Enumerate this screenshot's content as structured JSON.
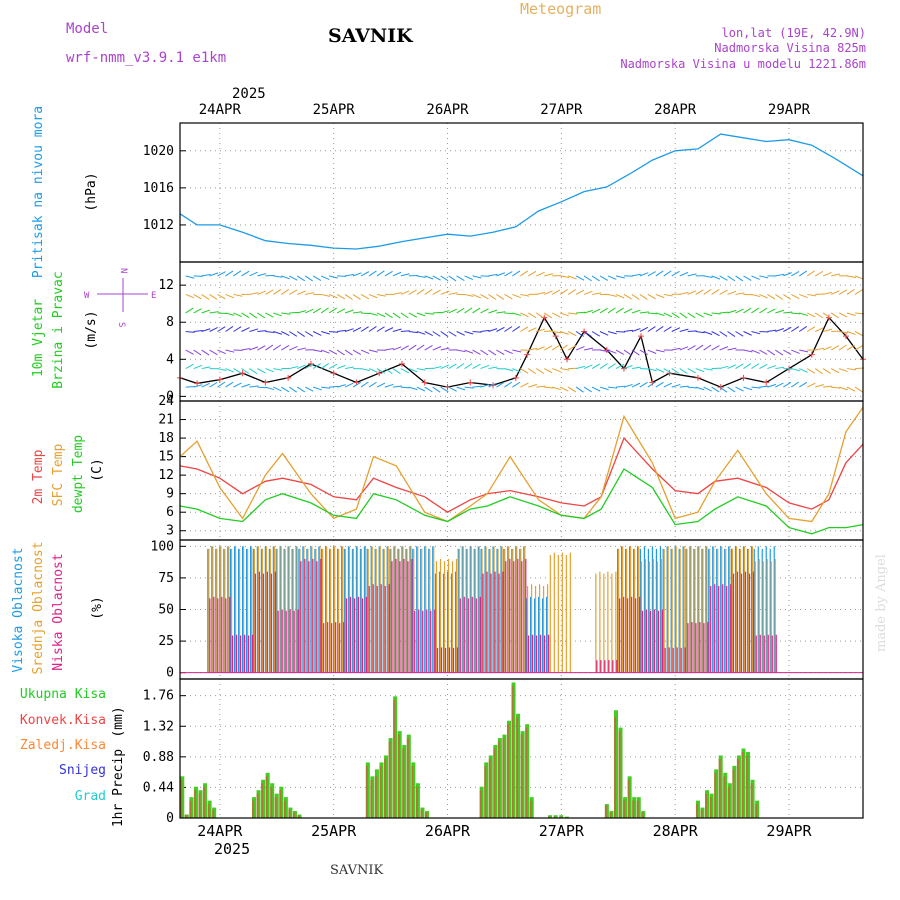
{
  "header": {
    "model_label": "Model",
    "model_name": "wrf-nmm_v3.9.1 e1km",
    "station": "SAVNIK",
    "product": "Meteogram",
    "lonlat": "lon,lat (19E, 42.9N)",
    "altitude": "Nadmorska Visina 825m",
    "model_altitude": "Nadmorska Visina u modelu 1221.86m"
  },
  "footer": {
    "station": "SAVNIK",
    "credit": "made by Angel"
  },
  "colors": {
    "pressure": "#1e9be6",
    "temp2m": "#ee4444",
    "sfc_temp": "#e6a030",
    "dewpoint": "#22cc22",
    "high_cloud": "#1e9be6",
    "mid_cloud": "#e6a030",
    "low_cloud": "#dd2288",
    "total_rain": "#44cc22",
    "conv_rain": "#ee4444",
    "grid_rain": "#ff8833",
    "snow": "#3333dd",
    "graupel": "#22cccc",
    "title_purple": "#aa44cc",
    "meteogram_orange": "#e6b060"
  },
  "chart_data": [
    {
      "type": "line",
      "panel": "pressure",
      "ylabel": "Pritisak na nivou mora",
      "unit": "(hPa)",
      "ylim": [
        1008,
        1023
      ],
      "yticks": [
        1012,
        1016,
        1020
      ],
      "x_top_labels": [
        "24APR",
        "25APR",
        "26APR",
        "27APR",
        "28APR",
        "29APR"
      ],
      "x_top_year": "2025",
      "x_range_days": [
        23.65,
        29.65
      ],
      "series": [
        {
          "x": [
            23.65,
            23.8,
            24.0,
            24.2,
            24.4,
            24.6,
            24.8,
            25.0,
            25.2,
            25.4,
            25.6,
            25.8,
            26.0,
            26.2,
            26.4,
            26.6,
            26.8,
            27.0,
            27.2,
            27.4,
            27.6,
            27.8,
            28.0,
            28.2,
            28.4,
            28.6,
            28.8,
            29.0,
            29.2,
            29.4,
            29.65
          ],
          "y": [
            1013.2,
            1012.0,
            1012.0,
            1011.2,
            1010.3,
            1010.0,
            1009.8,
            1009.5,
            1009.4,
            1009.7,
            1010.2,
            1010.6,
            1011.0,
            1010.8,
            1011.2,
            1011.8,
            1013.5,
            1014.5,
            1015.6,
            1016.1,
            1017.5,
            1019.0,
            1020.0,
            1020.2,
            1021.8,
            1021.4,
            1021.0,
            1021.2,
            1020.6,
            1019.2,
            1017.3
          ]
        }
      ]
    },
    {
      "type": "line",
      "panel": "wind",
      "ylabel": "10m Vjetar",
      "ylabel2": "Brzina i Pravac",
      "unit": "(m/s)",
      "compass": {
        "n": "N",
        "s": "S",
        "w": "W",
        "e": "E"
      },
      "ylim": [
        -0.5,
        14.5
      ],
      "yticks": [
        0,
        4,
        8,
        12
      ],
      "series": [
        {
          "name": "speed",
          "x": [
            23.65,
            23.8,
            24.0,
            24.2,
            24.4,
            24.6,
            24.8,
            25.0,
            25.2,
            25.4,
            25.6,
            25.8,
            26.0,
            26.2,
            26.4,
            26.6,
            26.7,
            26.85,
            26.95,
            27.05,
            27.2,
            27.4,
            27.55,
            27.7,
            27.8,
            27.95,
            28.2,
            28.4,
            28.6,
            28.8,
            29.0,
            29.2,
            29.35,
            29.5,
            29.65
          ],
          "y": [
            2.0,
            1.4,
            1.8,
            2.5,
            1.5,
            2.0,
            3.5,
            2.5,
            1.5,
            2.5,
            3.5,
            1.5,
            1.0,
            1.5,
            1.2,
            2.0,
            4.5,
            8.5,
            6.5,
            4.0,
            7.0,
            5.0,
            3.0,
            6.5,
            1.5,
            2.5,
            2.0,
            1.0,
            2.0,
            1.5,
            3.0,
            4.5,
            8.5,
            6.5,
            4.0
          ]
        }
      ]
    },
    {
      "type": "line",
      "panel": "temperature",
      "ylabels": [
        "2m Temp",
        "SFC Temp",
        "dewpt Temp"
      ],
      "unit": "(C)",
      "ylim": [
        1.5,
        24
      ],
      "yticks": [
        3,
        6,
        9,
        12,
        15,
        18,
        21,
        24
      ],
      "series": [
        {
          "name": "2m Temp",
          "x": [
            23.65,
            23.8,
            24.0,
            24.2,
            24.4,
            24.55,
            24.8,
            25.0,
            25.2,
            25.35,
            25.55,
            25.8,
            26.0,
            26.2,
            26.35,
            26.55,
            26.8,
            27.0,
            27.2,
            27.35,
            27.55,
            27.8,
            28.0,
            28.2,
            28.35,
            28.55,
            28.8,
            29.0,
            29.2,
            29.35,
            29.5,
            29.65
          ],
          "y": [
            13.5,
            13.0,
            11.5,
            9.0,
            11.0,
            11.5,
            10.5,
            8.5,
            8.0,
            11.5,
            10.0,
            8.5,
            6.0,
            8.0,
            9.0,
            9.5,
            8.5,
            7.5,
            7.0,
            8.5,
            18.0,
            13.0,
            9.5,
            9.0,
            11.0,
            11.5,
            10.0,
            7.5,
            6.5,
            8.0,
            14.0,
            17.0
          ]
        },
        {
          "name": "SFC Temp",
          "x": [
            23.65,
            23.8,
            24.0,
            24.2,
            24.4,
            24.55,
            24.8,
            25.0,
            25.2,
            25.35,
            25.55,
            25.8,
            26.0,
            26.2,
            26.35,
            26.55,
            26.8,
            27.0,
            27.2,
            27.35,
            27.55,
            27.8,
            28.0,
            28.2,
            28.35,
            28.55,
            28.8,
            29.0,
            29.2,
            29.35,
            29.5,
            29.65
          ],
          "y": [
            15.0,
            17.5,
            10.0,
            5.0,
            12.0,
            15.5,
            9.0,
            5.0,
            6.5,
            15.0,
            13.5,
            6.0,
            4.5,
            7.0,
            9.0,
            15.0,
            8.0,
            5.5,
            5.0,
            8.5,
            21.5,
            14.0,
            5.0,
            6.0,
            11.0,
            16.0,
            9.0,
            5.0,
            4.5,
            9.0,
            19.0,
            23.0
          ]
        },
        {
          "name": "dewpt Temp",
          "x": [
            23.65,
            23.8,
            24.0,
            24.2,
            24.4,
            24.55,
            24.8,
            25.0,
            25.2,
            25.35,
            25.55,
            25.8,
            26.0,
            26.2,
            26.35,
            26.55,
            26.8,
            27.0,
            27.2,
            27.35,
            27.55,
            27.8,
            28.0,
            28.2,
            28.35,
            28.55,
            28.8,
            29.0,
            29.2,
            29.35,
            29.5,
            29.65
          ],
          "y": [
            7.0,
            6.5,
            5.0,
            4.5,
            8.0,
            9.0,
            7.5,
            5.5,
            5.0,
            9.0,
            8.0,
            5.5,
            4.5,
            6.5,
            7.0,
            8.5,
            7.0,
            5.5,
            5.0,
            6.5,
            13.0,
            10.0,
            4.0,
            4.5,
            6.5,
            8.5,
            7.0,
            3.5,
            2.5,
            3.5,
            3.5,
            4.0
          ]
        }
      ]
    },
    {
      "type": "bar",
      "panel": "cloud",
      "ylabels": [
        "Visoka Oblacnost",
        "Srednja Oblacnost",
        "Niska Oblacnost"
      ],
      "unit": "(%)",
      "ylim": [
        -5,
        105
      ],
      "yticks": [
        0,
        25,
        50,
        75,
        100
      ],
      "series": [
        {
          "name": "Visoka Oblacnost",
          "x": [
            24.0,
            24.2,
            24.4,
            24.6,
            24.8,
            25.0,
            25.2,
            25.4,
            25.6,
            25.8,
            26.0,
            26.2,
            26.4,
            26.6,
            26.8,
            27.0,
            27.2,
            27.4,
            27.6,
            27.8,
            28.0,
            28.2,
            28.4,
            28.6,
            28.8,
            29.0,
            29.2,
            29.4
          ],
          "values": [
            100,
            100,
            100,
            100,
            100,
            100,
            100,
            100,
            100,
            100,
            80,
            100,
            100,
            100,
            60,
            0,
            0,
            0,
            100,
            100,
            100,
            100,
            100,
            100,
            100,
            0,
            0,
            0
          ]
        },
        {
          "name": "Srednja Oblacnost",
          "x": [
            24.0,
            24.2,
            24.4,
            24.6,
            24.8,
            25.0,
            25.2,
            25.4,
            25.6,
            25.8,
            26.0,
            26.2,
            26.4,
            26.6,
            26.8,
            27.0,
            27.2,
            27.4,
            27.6,
            27.8,
            28.0,
            28.2,
            28.4,
            28.6,
            28.8,
            29.0,
            29.2,
            29.4
          ],
          "values": [
            100,
            100,
            100,
            100,
            100,
            100,
            100,
            100,
            100,
            100,
            90,
            100,
            100,
            100,
            70,
            95,
            0,
            80,
            100,
            90,
            100,
            100,
            100,
            100,
            90,
            0,
            0,
            0
          ]
        },
        {
          "name": "Niska Oblacnost",
          "x": [
            24.0,
            24.2,
            24.4,
            24.6,
            24.8,
            25.0,
            25.2,
            25.4,
            25.6,
            25.8,
            26.0,
            26.2,
            26.4,
            26.6,
            26.8,
            27.0,
            27.2,
            27.4,
            27.6,
            27.8,
            28.0,
            28.2,
            28.4,
            28.6,
            28.8,
            29.0,
            29.2,
            29.4
          ],
          "values": [
            60,
            30,
            80,
            50,
            90,
            40,
            60,
            70,
            90,
            50,
            20,
            60,
            80,
            90,
            30,
            0,
            0,
            10,
            60,
            50,
            20,
            40,
            70,
            80,
            30,
            0,
            0,
            0
          ]
        }
      ]
    },
    {
      "type": "bar",
      "panel": "precip",
      "ylabels": [
        "Ukupna Kisa",
        "Konvek.Kisa",
        "Zaledj.Kisa",
        "Snijeg",
        "Grad"
      ],
      "ylabel": "1hr Precip",
      "unit": "(mm)",
      "ylim": [
        0,
        2.0
      ],
      "yticks": [
        0,
        0.44,
        0.88,
        1.32,
        1.76
      ],
      "x_bottom_labels": [
        "24APR",
        "25APR",
        "26APR",
        "27APR",
        "28APR",
        "29APR"
      ],
      "x_bottom_year": "2025",
      "series": [
        {
          "name": "Ukupna Kisa",
          "x": [
            23.67,
            23.71,
            23.75,
            23.79,
            23.83,
            23.87,
            23.91,
            23.95,
            24.3,
            24.34,
            24.38,
            24.42,
            24.46,
            24.5,
            24.54,
            24.58,
            24.62,
            24.66,
            24.7,
            25.3,
            25.34,
            25.38,
            25.42,
            25.46,
            25.5,
            25.54,
            25.58,
            25.62,
            25.66,
            25.7,
            25.74,
            25.78,
            25.82,
            26.3,
            26.34,
            26.38,
            26.42,
            26.46,
            26.5,
            26.54,
            26.58,
            26.62,
            26.66,
            26.7,
            26.74,
            26.9,
            26.95,
            27.0,
            27.05,
            27.4,
            27.44,
            27.48,
            27.52,
            27.56,
            27.6,
            27.64,
            27.68,
            27.72,
            28.2,
            28.24,
            28.28,
            28.32,
            28.36,
            28.4,
            28.44,
            28.48,
            28.52,
            28.56,
            28.6,
            28.64,
            28.68,
            28.72
          ],
          "values": [
            0.6,
            0.05,
            0.3,
            0.45,
            0.4,
            0.5,
            0.25,
            0.15,
            0.3,
            0.4,
            0.55,
            0.65,
            0.5,
            0.35,
            0.45,
            0.3,
            0.15,
            0.1,
            0.05,
            0.8,
            0.6,
            0.7,
            0.8,
            0.9,
            1.15,
            1.75,
            1.25,
            1.05,
            1.2,
            0.8,
            0.5,
            0.15,
            0.1,
            0.45,
            0.8,
            0.9,
            1.05,
            1.15,
            1.2,
            1.4,
            1.95,
            1.5,
            1.25,
            1.35,
            0.3,
            0.04,
            0.04,
            0.04,
            0.02,
            0.2,
            0.1,
            1.55,
            1.3,
            0.3,
            0.6,
            0.3,
            0.3,
            0.1,
            0.25,
            0.15,
            0.4,
            0.35,
            0.7,
            0.9,
            0.65,
            0.5,
            0.75,
            0.9,
            1.0,
            0.95,
            0.55,
            0.25
          ]
        },
        {
          "name": "Konvek.Kisa",
          "x": [
            23.67,
            23.71,
            23.75,
            23.79,
            23.83,
            23.87,
            23.91,
            23.95,
            24.3,
            24.34,
            24.38,
            24.42,
            24.46,
            24.5,
            24.54,
            24.58,
            24.62,
            24.66,
            24.7,
            25.3,
            25.34,
            25.38,
            25.42,
            25.46,
            25.5,
            25.54,
            25.58,
            25.62,
            25.66,
            25.7,
            25.74,
            25.78,
            25.82,
            26.3,
            26.34,
            26.38,
            26.42,
            26.46,
            26.5,
            26.54,
            26.58,
            26.62,
            26.66,
            26.7,
            26.74,
            26.9,
            26.95,
            27.0,
            27.05,
            27.4,
            27.44,
            27.48,
            27.52,
            27.56,
            27.6,
            27.64,
            27.68,
            27.72,
            28.2,
            28.24,
            28.28,
            28.32,
            28.36,
            28.4,
            28.44,
            28.48,
            28.52,
            28.56,
            28.6,
            28.64,
            28.68,
            28.72
          ],
          "values": [
            0.55,
            0.05,
            0.25,
            0.4,
            0.35,
            0.45,
            0.2,
            0.12,
            0.25,
            0.35,
            0.5,
            0.6,
            0.45,
            0.3,
            0.4,
            0.25,
            0.12,
            0.08,
            0.04,
            0.75,
            0.55,
            0.6,
            0.75,
            0.85,
            1.1,
            1.7,
            1.2,
            1.0,
            1.15,
            0.75,
            0.45,
            0.12,
            0.08,
            0.4,
            0.75,
            0.85,
            1.0,
            1.1,
            1.15,
            1.35,
            1.9,
            1.45,
            1.2,
            1.3,
            0.25,
            0.02,
            0.02,
            0.02,
            0.01,
            0.18,
            0.08,
            1.45,
            1.25,
            0.25,
            0.55,
            0.25,
            0.25,
            0.08,
            0.2,
            0.12,
            0.35,
            0.3,
            0.65,
            0.85,
            0.6,
            0.45,
            0.7,
            0.85,
            0.95,
            0.9,
            0.5,
            0.2
          ]
        }
      ]
    }
  ]
}
